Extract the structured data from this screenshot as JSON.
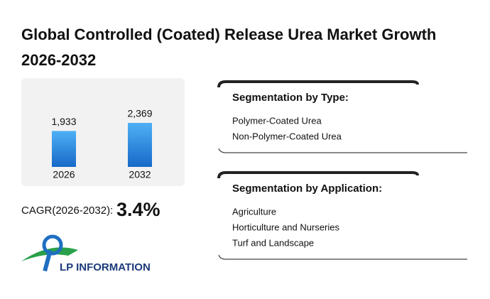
{
  "title": "Global Controlled (Coated) Release Urea Market Growth 2026-2032",
  "chart_data": {
    "type": "bar",
    "categories": [
      "2026",
      "2032"
    ],
    "values": [
      1933,
      2369
    ],
    "value_labels": [
      "1,933",
      "2,369"
    ],
    "color": "#1f7fd8"
  },
  "cagr_label": "CAGR(2026-2032):",
  "cagr": "3.4%",
  "segmentation": [
    {
      "heading": "Segmentation by Type:",
      "items": [
        "Polymer-Coated Urea",
        "Non-Polymer-Coated Urea"
      ]
    },
    {
      "heading": "Segmentation by Application:",
      "items": [
        "Agriculture",
        "Horticulture and Nurseries",
        "Turf and Landscape"
      ]
    }
  ],
  "logo": "LP INFORMATION"
}
